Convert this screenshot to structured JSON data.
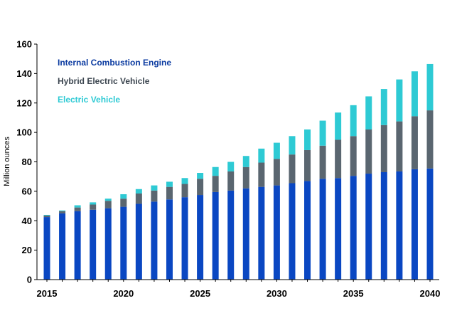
{
  "chart_data": {
    "type": "bar",
    "stacked": true,
    "title": "",
    "xlabel": "",
    "ylabel": "Million ounces",
    "ylim": [
      0,
      160
    ],
    "yticks": [
      0,
      20,
      40,
      60,
      80,
      100,
      120,
      140,
      160
    ],
    "xticks": [
      2015,
      2020,
      2025,
      2030,
      2035,
      2040
    ],
    "grid": false,
    "legend_position": "top-left",
    "categories": [
      2015,
      2016,
      2017,
      2018,
      2019,
      2020,
      2021,
      2022,
      2023,
      2024,
      2025,
      2026,
      2027,
      2028,
      2029,
      2030,
      2031,
      2032,
      2033,
      2034,
      2035,
      2036,
      2037,
      2038,
      2039,
      2040
    ],
    "series": [
      {
        "name": "Internal Combustion Engine",
        "color": "#0a47c2",
        "values": [
          42.5,
          45,
          46.5,
          47.5,
          48.5,
          49.5,
          51.5,
          53,
          54.5,
          56,
          57.5,
          59.5,
          60.5,
          62,
          63,
          64,
          65.5,
          67,
          68.5,
          69,
          70.5,
          72,
          73,
          73.5,
          75,
          75.5
        ]
      },
      {
        "name": "Hybrid Electric Vehicle",
        "color": "#5a6670",
        "values": [
          1,
          1.5,
          2.5,
          3.5,
          5,
          5.5,
          7,
          7.5,
          8.5,
          9,
          11,
          11,
          13,
          14.5,
          16.5,
          18,
          19.5,
          21,
          22.5,
          26,
          27,
          30,
          32,
          34,
          36,
          39.5
        ]
      },
      {
        "name": "Electric Vehicle",
        "color": "#2ecad4",
        "values": [
          0.5,
          0.5,
          1.5,
          1.5,
          1.5,
          3,
          3,
          3.5,
          3.5,
          4,
          4,
          6,
          6.5,
          7.5,
          9.5,
          11,
          12.5,
          14,
          17,
          18.5,
          21,
          22.5,
          24.5,
          28.5,
          30.5,
          31.5
        ]
      }
    ]
  }
}
